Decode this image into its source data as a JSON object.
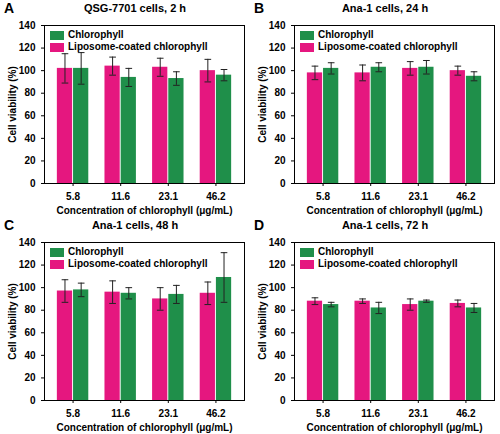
{
  "chart_data": [
    {
      "type": "bar",
      "panel": "A",
      "title": "QSG-7701 cells, 2 h",
      "x_label": "Concentration of chlorophyll (μg/mL)",
      "y_label": "Cell viability (%)",
      "categories": [
        "5.8",
        "11.6",
        "23.1",
        "46.2"
      ],
      "series": [
        {
          "name": "Chlorophyll",
          "color": "#1f8f4a",
          "values": [
            102,
            94,
            93,
            96
          ],
          "errors": [
            14,
            8,
            6,
            5
          ]
        },
        {
          "name": "Liposome-coated chlorophyll",
          "color": "#e5177f",
          "values": [
            102,
            104,
            103,
            100
          ],
          "errors": [
            13,
            8,
            8,
            10
          ]
        }
      ],
      "ylim": [
        0,
        140
      ],
      "yticks": [
        0,
        20,
        40,
        60,
        80,
        100,
        120,
        140
      ],
      "grid": false,
      "legend": "upper left"
    },
    {
      "type": "bar",
      "panel": "B",
      "title": "Ana-1 cells, 24 h",
      "x_label": "Concentration of chlorophyll (μg/mL)",
      "y_label": "Cell viability (%)",
      "categories": [
        "5.8",
        "11.6",
        "23.1",
        "46.2"
      ],
      "series": [
        {
          "name": "Chlorophyll",
          "color": "#1f8f4a",
          "values": [
            102,
            103,
            103,
            95
          ],
          "errors": [
            5,
            4,
            6,
            4
          ]
        },
        {
          "name": "Liposome-coated chlorophyll",
          "color": "#e5177f",
          "values": [
            98,
            98,
            102,
            100
          ],
          "errors": [
            6,
            7,
            6,
            4
          ]
        }
      ],
      "ylim": [
        0,
        140
      ],
      "yticks": [
        0,
        20,
        40,
        60,
        80,
        100,
        120,
        140
      ],
      "grid": false,
      "legend": "upper left"
    },
    {
      "type": "bar",
      "panel": "C",
      "title": "Ana-1 cells, 48 h",
      "x_label": "Concentration of chlorophyll (μg/mL)",
      "y_label": "Cell viability (%)",
      "categories": [
        "5.8",
        "11.6",
        "23.1",
        "46.2"
      ],
      "series": [
        {
          "name": "Chlorophyll",
          "color": "#1f8f4a",
          "values": [
            98,
            95,
            94,
            109
          ],
          "errors": [
            6,
            5,
            8,
            22
          ]
        },
        {
          "name": "Liposome-coated chlorophyll",
          "color": "#e5177f",
          "values": [
            97,
            96,
            90,
            95
          ],
          "errors": [
            10,
            10,
            10,
            10
          ]
        }
      ],
      "ylim": [
        0,
        140
      ],
      "yticks": [
        0,
        20,
        40,
        60,
        80,
        100,
        120,
        140
      ],
      "grid": false,
      "legend": "upper left"
    },
    {
      "type": "bar",
      "panel": "D",
      "title": "Ana-1 cells, 72 h",
      "x_label": "Concentration of chlorophyll (μg/mL)",
      "y_label": "Cell viability (%)",
      "categories": [
        "5.8",
        "11.6",
        "23.1",
        "46.2"
      ],
      "series": [
        {
          "name": "Chlorophyll",
          "color": "#1f8f4a",
          "values": [
            85,
            82,
            88,
            82
          ],
          "errors": [
            2,
            5,
            1,
            4
          ]
        },
        {
          "name": "Liposome-coated chlorophyll",
          "color": "#e5177f",
          "values": [
            88,
            88,
            85,
            86
          ],
          "errors": [
            3,
            2,
            5,
            3
          ]
        }
      ],
      "ylim": [
        0,
        140
      ],
      "yticks": [
        0,
        20,
        40,
        60,
        80,
        100,
        120,
        140
      ],
      "grid": false,
      "legend": "upper left"
    }
  ]
}
